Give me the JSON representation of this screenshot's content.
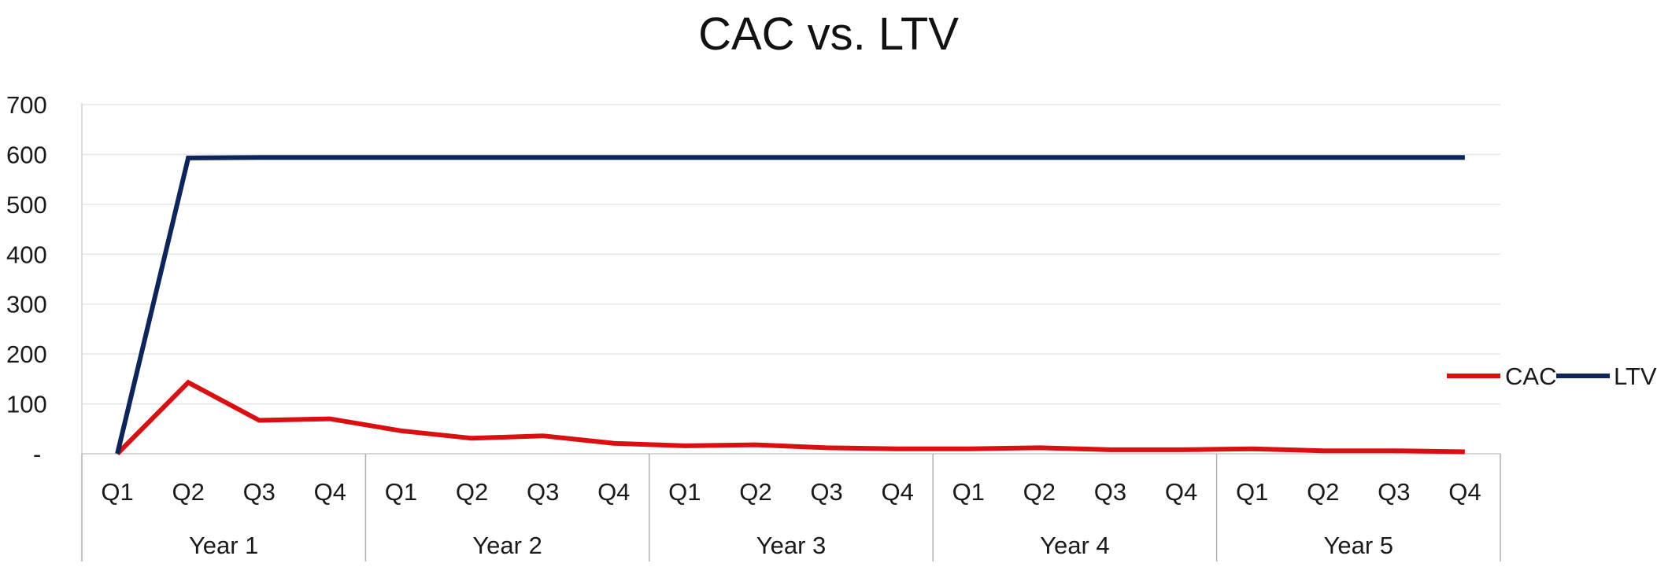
{
  "chart_data": {
    "type": "line",
    "title": "CAC vs. LTV",
    "xlabel": "",
    "ylabel": "",
    "ylim": [
      0,
      700
    ],
    "yticks": [
      0,
      100,
      200,
      300,
      400,
      500,
      600,
      700
    ],
    "ytick_labels": [
      "-",
      "100",
      "200",
      "300",
      "400",
      "500",
      "600",
      "700"
    ],
    "categories": [
      "Q1",
      "Q2",
      "Q3",
      "Q4",
      "Q1",
      "Q2",
      "Q3",
      "Q4",
      "Q1",
      "Q2",
      "Q3",
      "Q4",
      "Q1",
      "Q2",
      "Q3",
      "Q4",
      "Q1",
      "Q2",
      "Q3",
      "Q4"
    ],
    "groups": [
      {
        "label": "Year 1",
        "size": 4
      },
      {
        "label": "Year 2",
        "size": 4
      },
      {
        "label": "Year 3",
        "size": 4
      },
      {
        "label": "Year 4",
        "size": 4
      },
      {
        "label": "Year 5",
        "size": 4
      }
    ],
    "series": [
      {
        "name": "CAC",
        "color": "#d90f12",
        "values": [
          0,
          143,
          67,
          70,
          46,
          31,
          36,
          21,
          16,
          18,
          12,
          10,
          10,
          12,
          8,
          8,
          10,
          6,
          6,
          4
        ]
      },
      {
        "name": "LTV",
        "color": "#0d2559",
        "values": [
          0,
          593,
          594,
          594,
          594,
          594,
          594,
          594,
          594,
          594,
          594,
          594,
          594,
          594,
          594,
          594,
          594,
          594,
          594,
          594
        ]
      }
    ],
    "grid": true,
    "legend_position": "right"
  }
}
